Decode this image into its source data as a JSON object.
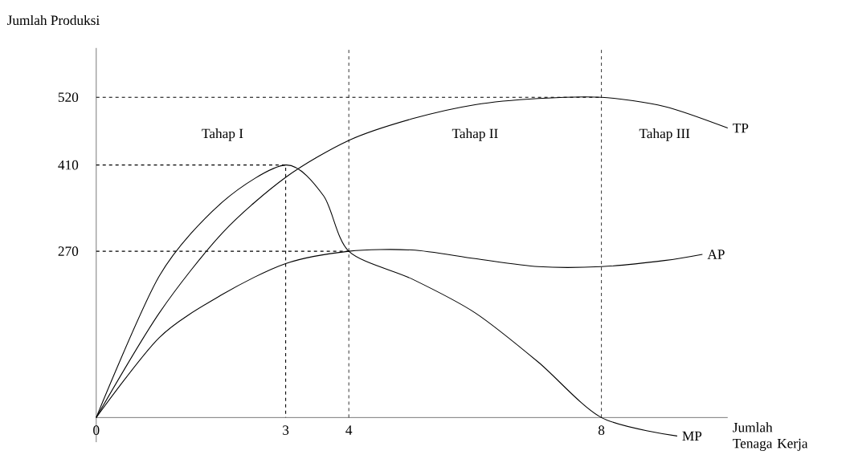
{
  "chart_data": {
    "type": "line",
    "xlabel": "Jumlah Tenaga Kerja",
    "ylabel": "Jumlah Produksi",
    "xlim": [
      0,
      10
    ],
    "ylim": [
      -40,
      600
    ],
    "xticks": [
      0,
      3,
      4,
      8
    ],
    "yticks": [
      270,
      410,
      520
    ],
    "grid": false,
    "series": [
      {
        "name": "TP",
        "color": "#000000",
        "x": [
          0,
          1,
          2,
          3,
          4,
          5,
          6,
          7,
          8,
          9,
          10
        ],
        "values": [
          0,
          170,
          300,
          390,
          450,
          485,
          508,
          518,
          520,
          505,
          470
        ]
      },
      {
        "name": "AP",
        "color": "#000000",
        "x": [
          0,
          1,
          2,
          3,
          4,
          5,
          6,
          7,
          8,
          9,
          9.6
        ],
        "values": [
          0,
          130,
          200,
          250,
          270,
          272,
          258,
          245,
          245,
          255,
          265
        ]
      },
      {
        "name": "MP",
        "color": "#000000",
        "x": [
          0,
          1,
          2,
          3,
          3.6,
          4,
          5,
          6,
          7,
          8,
          9.2
        ],
        "values": [
          0,
          230,
          350,
          410,
          360,
          270,
          225,
          170,
          90,
          0,
          -30
        ]
      },
      {
        "color": "#000000",
        "line_style": "dashed",
        "x": [
          0,
          3,
          3
        ],
        "values": [
          410,
          410,
          0
        ]
      },
      {
        "color": "#000000",
        "line_style": "dashed",
        "x": [
          0,
          4
        ],
        "values": [
          270,
          270
        ]
      },
      {
        "color": "#000000",
        "line_style": "dashed",
        "x": [
          0,
          8
        ],
        "values": [
          520,
          520
        ]
      }
    ],
    "ref_lines": [
      {
        "axis": "x",
        "value": 4,
        "line_style": "dashed"
      },
      {
        "axis": "x",
        "value": 8,
        "line_style": "dashed"
      }
    ],
    "annotations": [
      "Tahap I",
      "Tahap II",
      "Tahap III"
    ]
  }
}
